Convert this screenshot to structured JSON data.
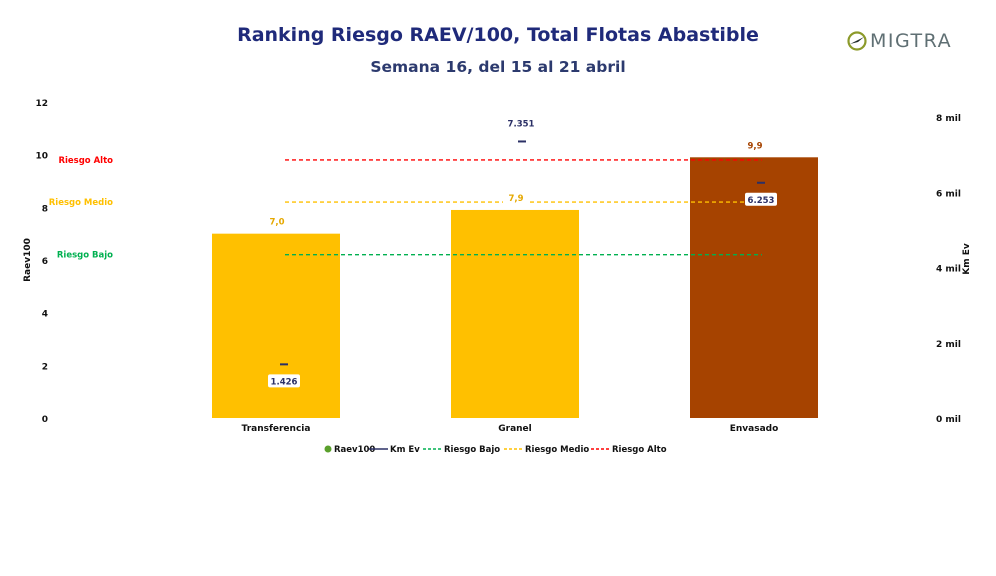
{
  "title": "Ranking Riesgo RAEV/100, Total Flotas Abastible",
  "subtitle": "Semana 16, del 15 al 21 abril",
  "logo": {
    "text_prefix": "",
    "text": "MIGTRA",
    "accent_color": "#8c9a2a"
  },
  "colors": {
    "bar_yellow": "#ffc000",
    "bar_brown": "#a64300",
    "km_marker": "#2b3066",
    "riesgo_bajo": "#00b050",
    "riesgo_medio": "#ffc000",
    "riesgo_alto": "#ff0000",
    "legend_raev": "#5aa02c"
  },
  "chart_data": {
    "type": "bar",
    "title": "Ranking Riesgo RAEV/100, Total Flotas Abastible",
    "subtitle": "Semana 16, del 15 al 21 abril",
    "categories": [
      "Transferencia",
      "Granel",
      "Envasado"
    ],
    "series": [
      {
        "name": "Raev100",
        "axis": "left",
        "values": [
          7.0,
          7.9,
          9.9
        ],
        "labels": [
          "7,0",
          "7,9",
          "9,9"
        ],
        "colors": [
          "#ffc000",
          "#ffc000",
          "#a64300"
        ]
      },
      {
        "name": "Km Ev",
        "axis": "right",
        "values": [
          1426,
          7351,
          6253
        ],
        "labels": [
          "1.426",
          "7.351",
          "6.253"
        ]
      }
    ],
    "reference_lines": [
      {
        "name": "Riesgo Bajo",
        "value": 6.2,
        "color": "#00b050",
        "label": "Riesgo Bajo"
      },
      {
        "name": "Riesgo Medio",
        "value": 8.2,
        "color": "#ffc000",
        "label": "Riesgo Medio"
      },
      {
        "name": "Riesgo Alto",
        "value": 9.8,
        "color": "#ff0000",
        "label": "Riesgo Alto"
      }
    ],
    "ylabel": "Raev100",
    "y2label": "Km Ev",
    "ylim": [
      0,
      12
    ],
    "yticks": [
      "0",
      "2",
      "4",
      "6",
      "8",
      "10",
      "12"
    ],
    "y2lim": [
      0,
      8400
    ],
    "y2ticks": [
      "0 mil",
      "2 mil",
      "4 mil",
      "6 mil",
      "8 mil"
    ],
    "legend_position": "bottom",
    "grid": false
  },
  "legend": [
    {
      "label": "Raev100"
    },
    {
      "label": "Km Ev"
    },
    {
      "label": "Riesgo Bajo"
    },
    {
      "label": "Riesgo Medio"
    },
    {
      "label": "Riesgo Alto"
    }
  ]
}
